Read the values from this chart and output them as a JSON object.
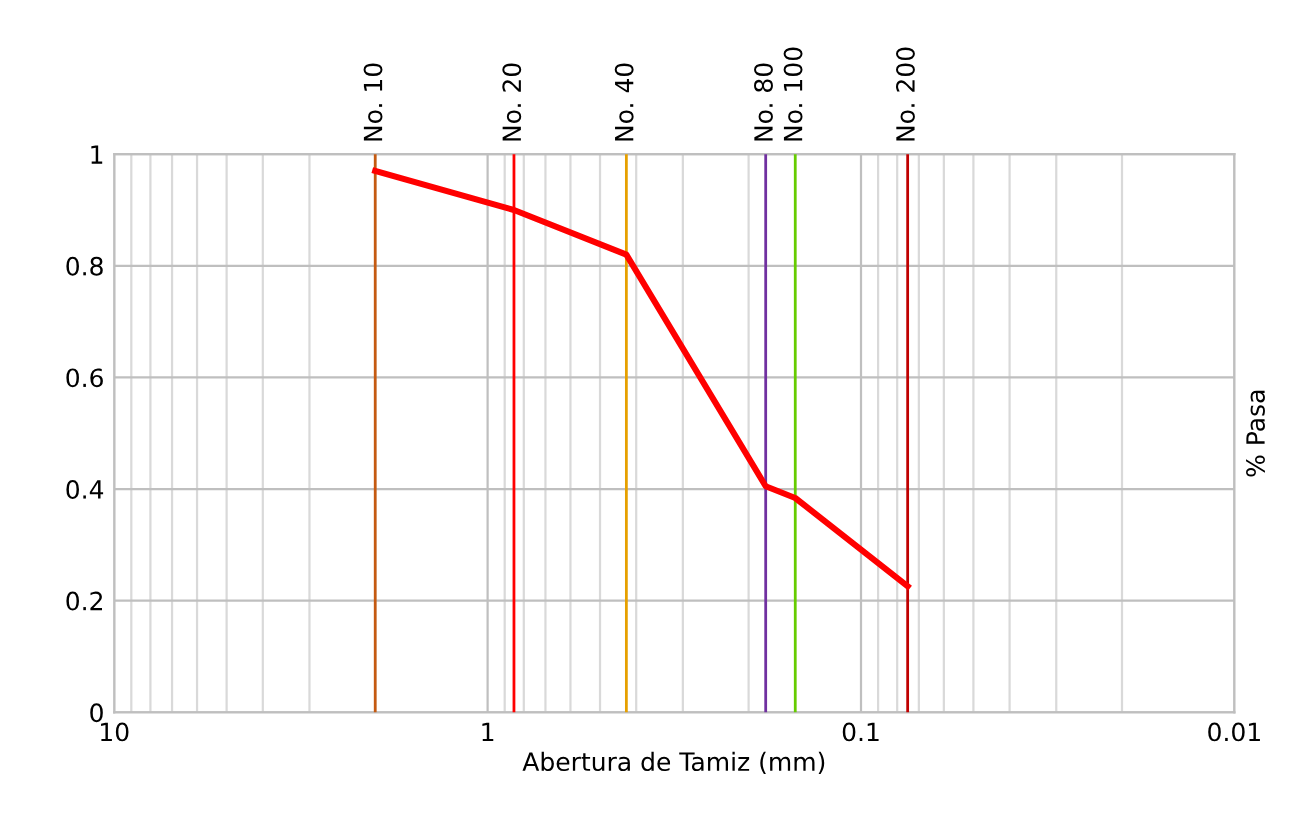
{
  "chart_data": {
    "type": "line",
    "xlabel": "Abertura de Tamiz (mm)",
    "y2label": "% Pasa",
    "log": "x",
    "grid": true,
    "marker": "none",
    "line_style": "solid",
    "xlim": [
      10,
      0.01
    ],
    "xticks": [
      10,
      1,
      0.1,
      0.01
    ],
    "ylim": [
      0,
      1
    ],
    "yticks": [
      0,
      0.2,
      0.4,
      0.6,
      0.8,
      1
    ],
    "series": [
      {
        "color": "#ff0000",
        "x": [
          2.0,
          0.85,
          0.425,
          0.18,
          0.15,
          0.075
        ],
        "values": [
          0.97,
          0.9,
          0.82,
          0.405,
          0.384,
          0.226
        ]
      }
    ],
    "ref_lines": [
      {
        "axis": "x",
        "value": 2.0,
        "label": "No. 10",
        "color": "#c55a11"
      },
      {
        "axis": "x",
        "value": 0.85,
        "label": "No. 20",
        "color": "#ff0000"
      },
      {
        "axis": "x",
        "value": 0.425,
        "label": "No. 40",
        "color": "#e6a000"
      },
      {
        "axis": "x",
        "value": 0.18,
        "label": "No. 80",
        "color": "#7030a0"
      },
      {
        "axis": "x",
        "value": 0.15,
        "label": "No. 100",
        "color": "#66cc00"
      },
      {
        "axis": "x",
        "value": 0.075,
        "label": "No. 200",
        "color": "#c00000"
      }
    ]
  }
}
